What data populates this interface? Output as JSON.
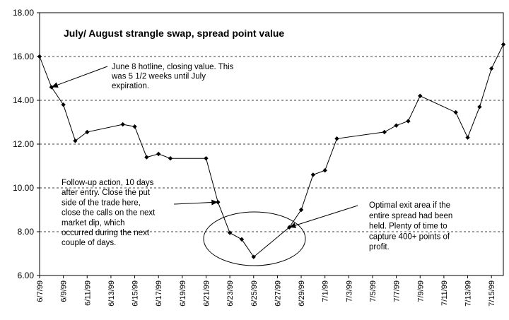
{
  "chart_data": {
    "type": "line",
    "title": "July/ August strangle swap, spread point value",
    "xlabel": "",
    "ylabel": "",
    "ylim": [
      6,
      18
    ],
    "yticks": [
      "6.00",
      "8.00",
      "10.00",
      "12.00",
      "14.00",
      "16.00",
      "18.00"
    ],
    "xticks": [
      "6/7/99",
      "6/9/99",
      "6/11/99",
      "6/13/99",
      "6/15/99",
      "6/17/99",
      "6/19/99",
      "6/21/99",
      "6/23/99",
      "6/25/99",
      "6/27/99",
      "6/29/99",
      "7/1/99",
      "7/3/99",
      "7/5/99",
      "7/7/99",
      "7/9/99",
      "7/11/99",
      "7/13/99",
      "7/15/99"
    ],
    "grid": "horizontal dashed",
    "legend": "none",
    "series": [
      {
        "points": [
          {
            "x": "6/7/99",
            "y": 16.0
          },
          {
            "x": "6/8/99",
            "y": 14.6
          },
          {
            "x": "6/9/99",
            "y": 13.8
          },
          {
            "x": "6/10/99",
            "y": 12.15
          },
          {
            "x": "6/11/99",
            "y": 12.55
          },
          {
            "x": "6/14/99",
            "y": 12.9
          },
          {
            "x": "6/15/99",
            "y": 12.8
          },
          {
            "x": "6/16/99",
            "y": 11.4
          },
          {
            "x": "6/17/99",
            "y": 11.55
          },
          {
            "x": "6/18/99",
            "y": 11.35
          },
          {
            "x": "6/21/99",
            "y": 11.35
          },
          {
            "x": "6/22/99",
            "y": 9.35
          },
          {
            "x": "6/23/99",
            "y": 7.95
          },
          {
            "x": "6/24/99",
            "y": 7.65
          },
          {
            "x": "6/25/99",
            "y": 6.85
          },
          {
            "x": "6/28/99",
            "y": 8.2
          },
          {
            "x": "6/29/99",
            "y": 9.0
          },
          {
            "x": "6/30/99",
            "y": 10.6
          },
          {
            "x": "7/1/99",
            "y": 10.8
          },
          {
            "x": "7/2/99",
            "y": 12.25
          },
          {
            "x": "7/6/99",
            "y": 12.55
          },
          {
            "x": "7/7/99",
            "y": 12.85
          },
          {
            "x": "7/8/99",
            "y": 13.05
          },
          {
            "x": "7/9/99",
            "y": 14.2
          },
          {
            "x": "7/12/99",
            "y": 13.45
          },
          {
            "x": "7/13/99",
            "y": 12.3
          },
          {
            "x": "7/14/99",
            "y": 13.7
          },
          {
            "x": "7/15/99",
            "y": 15.45
          },
          {
            "x": "7/16/99",
            "y": 16.55
          }
        ]
      }
    ],
    "annotations": [
      {
        "lines": [
          "June 8 hotline, closing value.  This",
          "was 5 1/2 weeks until July",
          "expiration."
        ],
        "points_to": {
          "x": "6/8/99",
          "y": 14.6
        }
      },
      {
        "lines": [
          "Follow-up action, 10 days",
          "after entry. Close the put",
          "side of the trade here,",
          "close the calls on the next",
          "market dip, which",
          "occurred during the next",
          "couple of days."
        ],
        "points_to": {
          "x": "6/22/99",
          "y": 9.35
        }
      },
      {
        "lines": [
          "Optimal exit area if the",
          "entire spread had been",
          "held. Plenty of time to",
          "capture 400+ points of",
          "profit."
        ],
        "points_to": {
          "x": "6/28/99",
          "y": 8.2
        }
      }
    ]
  }
}
